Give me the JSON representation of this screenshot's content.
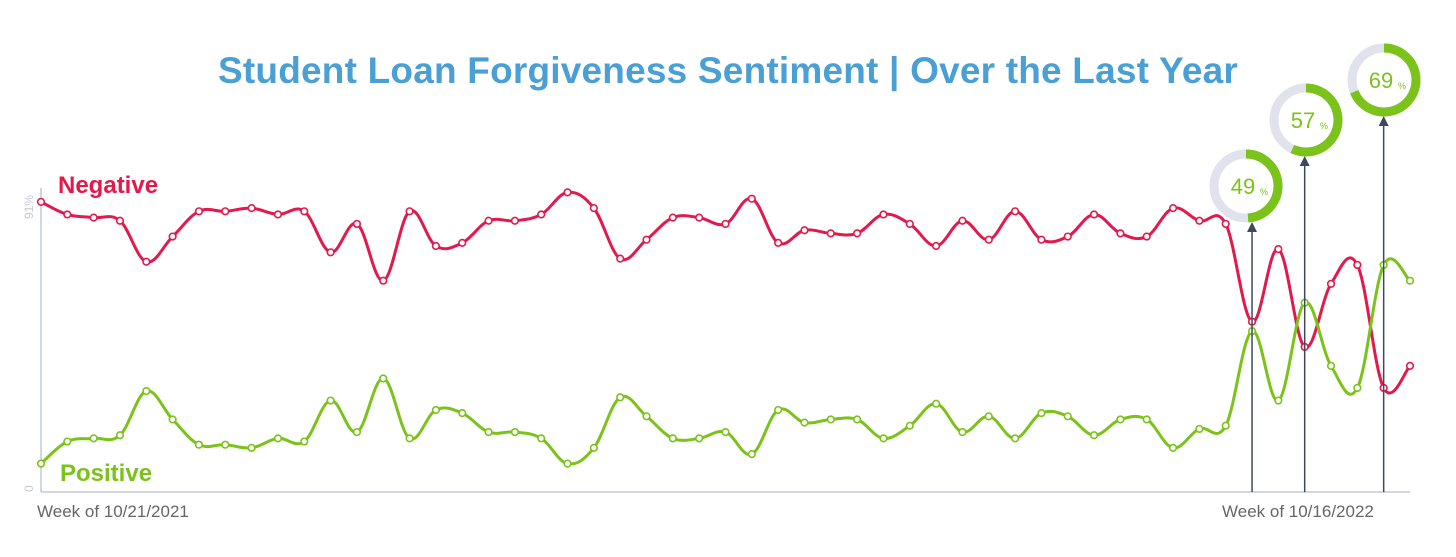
{
  "colors": {
    "title": "#4a9fd4",
    "negative": "#e2194c",
    "positive": "#7bc21a",
    "axis": "#c4c9d8",
    "ring_track": "#e1e3ec",
    "callout_line": "#3e4a5c",
    "tick_text": "#666666"
  },
  "chart_data": {
    "type": "line",
    "title": "Student Loan Forgiveness Sentiment | Over the Last Year",
    "xlabel": "",
    "ylabel": "",
    "ylim": [
      0,
      91
    ],
    "yticks": [
      "0",
      "91%"
    ],
    "x_tick_labels": [
      "Week of 10/21/2021",
      "Week of 10/16/2022"
    ],
    "x": [
      1,
      2,
      3,
      4,
      5,
      6,
      7,
      8,
      9,
      10,
      11,
      12,
      13,
      14,
      15,
      16,
      17,
      18,
      19,
      20,
      21,
      22,
      23,
      24,
      25,
      26,
      27,
      28,
      29,
      30,
      31,
      32,
      33,
      34,
      35,
      36,
      37,
      38,
      39,
      40,
      41,
      42,
      43,
      44,
      45,
      46,
      47,
      48,
      49,
      50,
      51,
      52,
      53
    ],
    "series": [
      {
        "name": "Negative",
        "values": [
          92,
          88,
          87,
          86,
          73,
          81,
          89,
          89,
          90,
          88,
          89,
          76,
          85,
          67,
          89,
          78,
          79,
          86,
          86,
          88,
          95,
          90,
          74,
          80,
          87,
          87,
          85,
          93,
          79,
          83,
          82,
          82,
          88,
          85,
          78,
          86,
          80,
          89,
          80,
          81,
          88,
          82,
          81,
          90,
          86,
          85,
          54,
          77,
          46,
          66,
          72,
          33,
          40
        ]
      },
      {
        "name": "Positive",
        "values": [
          9,
          16,
          17,
          18,
          32,
          23,
          15,
          15,
          14,
          17,
          16,
          29,
          19,
          36,
          17,
          26,
          25,
          19,
          19,
          17,
          9,
          14,
          30,
          24,
          17,
          17,
          19,
          12,
          26,
          22,
          23,
          23,
          17,
          21,
          28,
          19,
          24,
          17,
          25,
          24,
          18,
          23,
          23,
          14,
          20,
          21,
          51,
          29,
          60,
          40,
          33,
          72,
          67
        ]
      }
    ],
    "labels": {
      "negative": "Negative",
      "positive": "Positive"
    },
    "callouts": [
      {
        "x": 47,
        "value": 49,
        "text": "49"
      },
      {
        "x": 49,
        "value": 57,
        "text": "57"
      },
      {
        "x": 52,
        "value": 69,
        "text": "69"
      }
    ],
    "callout_unit": "%"
  }
}
